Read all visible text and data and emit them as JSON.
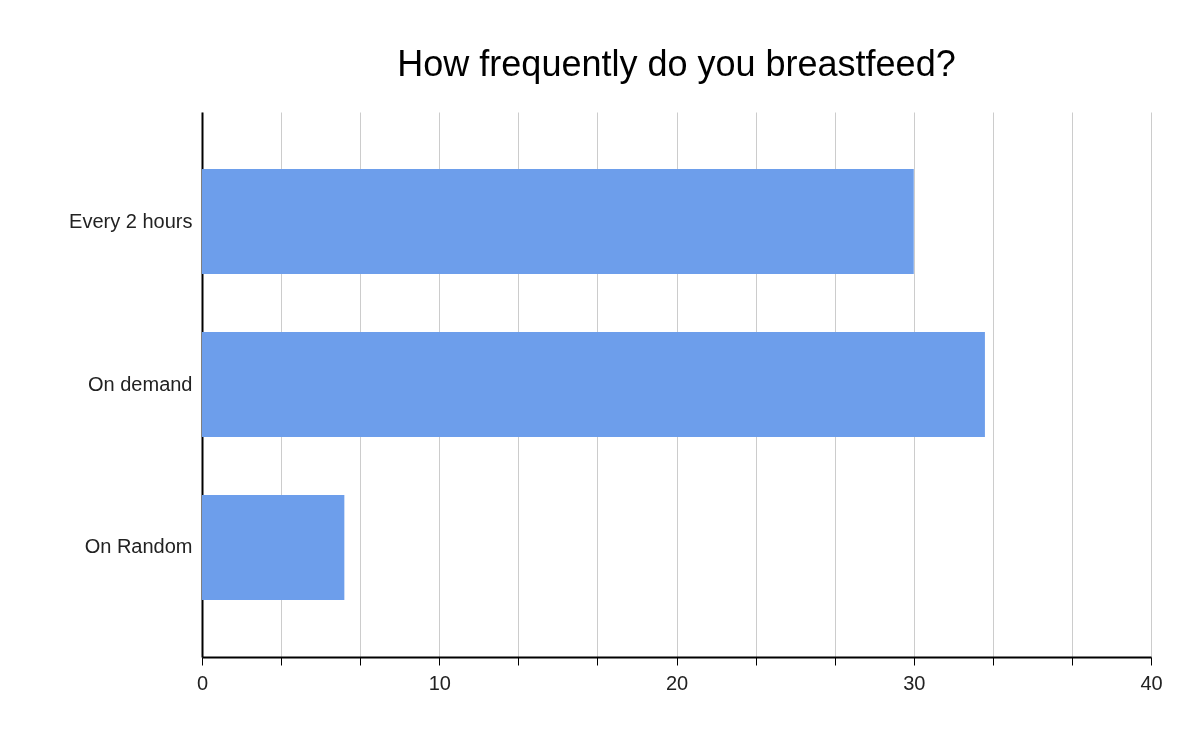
{
  "chart_data": {
    "type": "bar",
    "orientation": "horizontal",
    "title": "How frequently do you breastfeed?",
    "categories": [
      "Every 2 hours",
      "On demand",
      "On Random"
    ],
    "values": [
      30,
      33,
      6
    ],
    "color": "#6d9eeb",
    "xlim": [
      0,
      40
    ],
    "xticks": [
      0,
      {
        "value": 3.333,
        "label": null
      },
      {
        "value": 6.667,
        "label": null
      },
      10,
      {
        "value": 13.333,
        "label": null
      },
      {
        "value": 16.667,
        "label": null
      },
      20,
      {
        "value": 23.333,
        "label": null
      },
      {
        "value": 26.667,
        "label": null
      },
      30,
      {
        "value": 33.333,
        "label": null
      },
      {
        "value": 36.667,
        "label": null
      },
      40
    ],
    "grid": "x"
  }
}
